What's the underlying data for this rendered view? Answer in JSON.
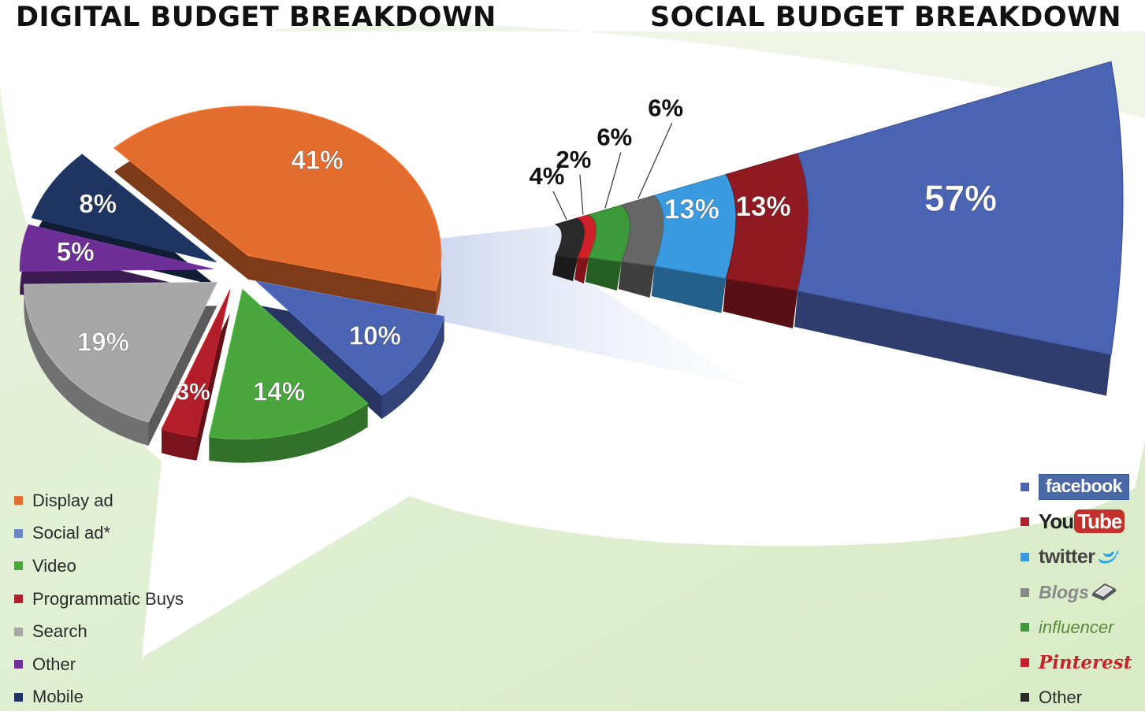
{
  "titles": {
    "left": "DIGITAL BUDGET BREAKDOWN",
    "right": "SOCIAL BUDGET BREAKDOWN"
  },
  "chart_data": [
    {
      "type": "pie",
      "title": "DIGITAL BUDGET BREAKDOWN",
      "legend_position": "bottom-left",
      "slices": [
        {
          "label": "Display ad",
          "value": 41,
          "value_label": "41%",
          "color": "#e36c2f"
        },
        {
          "label": "Social ad*",
          "value": 10,
          "value_label": "10%",
          "color": "#4a63b2"
        },
        {
          "label": "Video",
          "value": 14,
          "value_label": "14%",
          "color": "#49a63d"
        },
        {
          "label": "Programmatic Buys",
          "value": 3,
          "value_label": "3%",
          "color": "#b21e2a"
        },
        {
          "label": "Search",
          "value": 19,
          "value_label": "19%",
          "color": "#a6a6a6"
        },
        {
          "label": "Other",
          "value": 5,
          "value_label": "5%",
          "color": "#6d2f95"
        },
        {
          "label": "Mobile",
          "value": 8,
          "value_label": "8%",
          "color": "#1e3461"
        }
      ]
    },
    {
      "type": "pie",
      "title": "SOCIAL BUDGET BREAKDOWN",
      "legend_position": "bottom-right",
      "slices": [
        {
          "label": "facebook",
          "value": 57,
          "value_label": "57%",
          "color": "#4a63b2"
        },
        {
          "label": "YouTube",
          "value": 13,
          "value_label": "13%",
          "color": "#8f1a22"
        },
        {
          "label": "twitter",
          "value": 13,
          "value_label": "13%",
          "color": "#3b9be0"
        },
        {
          "label": "Blogs",
          "value": 6,
          "value_label": "6%",
          "color": "#666666"
        },
        {
          "label": "influencer",
          "value": 6,
          "value_label": "6%",
          "color": "#3c9a3a"
        },
        {
          "label": "Pinterest",
          "value": 2,
          "value_label": "2%",
          "color": "#d0202a"
        },
        {
          "label": "Other",
          "value": 4,
          "value_label": "4%",
          "color": "#2a2a2a"
        }
      ]
    }
  ],
  "legend_left": [
    {
      "label": "Display ad",
      "color": "#e36c2f"
    },
    {
      "label": "Social ad*",
      "color": "#6f86c6"
    },
    {
      "label": "Video",
      "color": "#49a63d"
    },
    {
      "label": "Programmatic Buys",
      "color": "#b21e2a"
    },
    {
      "label": "Search",
      "color": "#a6a6a6"
    },
    {
      "label": "Other",
      "color": "#6d2f95"
    },
    {
      "label": "Mobile",
      "color": "#1e3461"
    }
  ],
  "legend_right": [
    {
      "label": "facebook",
      "color": "#4a63b2",
      "icon": "facebook-logo"
    },
    {
      "label": "You",
      "label_box": "Tube",
      "color": "#b21e2a",
      "icon": "youtube-logo"
    },
    {
      "label": "twitter",
      "color": "#3b9be0",
      "icon": "twitter-bird-icon"
    },
    {
      "label": "Blogs",
      "color": "#8a8a8a",
      "icon": "laptop-icon"
    },
    {
      "label": "influencer",
      "color": "#3c9a3a",
      "icon": "influencer-logo"
    },
    {
      "label": "Pinterest",
      "color": "#c8232c",
      "icon": "pinterest-logo"
    },
    {
      "label": "Other",
      "color": "#2a2a2a",
      "icon": null
    }
  ]
}
